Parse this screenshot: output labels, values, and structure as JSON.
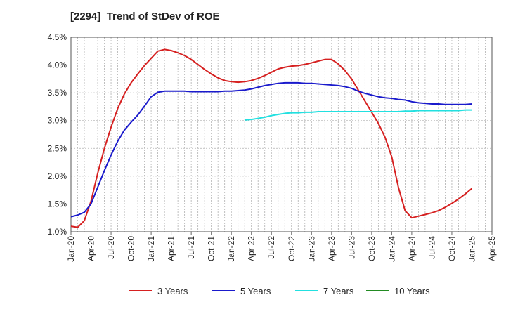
{
  "chart_data": {
    "type": "line",
    "title": "[2294]  Trend of StDev of ROE",
    "xlabel": "",
    "ylabel": "",
    "x_ticks": [
      "Jan-20",
      "Apr-20",
      "Jul-20",
      "Oct-20",
      "Jan-21",
      "Apr-21",
      "Jul-21",
      "Oct-21",
      "Jan-22",
      "Apr-22",
      "Jul-22",
      "Oct-22",
      "Jan-23",
      "Apr-23",
      "Jul-23",
      "Oct-23",
      "Jan-24",
      "Apr-24",
      "Jul-24",
      "Oct-24",
      "Jan-25",
      "Apr-25"
    ],
    "y_ticks": [
      "1.0%",
      "1.5%",
      "2.0%",
      "2.5%",
      "3.0%",
      "3.5%",
      "4.0%",
      "4.5%"
    ],
    "ylim": [
      1.0,
      4.5
    ],
    "grid": true,
    "legend_position": "bottom",
    "series": [
      {
        "name": "3 Years",
        "color": "#d62020",
        "points": [
          [
            "Jan-20",
            1.1
          ],
          [
            "Feb-20",
            1.08
          ],
          [
            "Mar-20",
            1.2
          ],
          [
            "Apr-20",
            1.55
          ],
          [
            "May-20",
            2.05
          ],
          [
            "Jun-20",
            2.5
          ],
          [
            "Jul-20",
            2.88
          ],
          [
            "Aug-20",
            3.22
          ],
          [
            "Sep-20",
            3.48
          ],
          [
            "Oct-20",
            3.68
          ],
          [
            "Nov-20",
            3.84
          ],
          [
            "Dec-20",
            3.99
          ],
          [
            "Jan-21",
            4.12
          ],
          [
            "Feb-21",
            4.25
          ],
          [
            "Mar-21",
            4.28
          ],
          [
            "Apr-21",
            4.26
          ],
          [
            "May-21",
            4.22
          ],
          [
            "Jun-21",
            4.17
          ],
          [
            "Jul-21",
            4.1
          ],
          [
            "Aug-21",
            4.01
          ],
          [
            "Sep-21",
            3.92
          ],
          [
            "Oct-21",
            3.84
          ],
          [
            "Nov-21",
            3.77
          ],
          [
            "Dec-21",
            3.72
          ],
          [
            "Jan-22",
            3.7
          ],
          [
            "Feb-22",
            3.69
          ],
          [
            "Mar-22",
            3.7
          ],
          [
            "Apr-22",
            3.72
          ],
          [
            "May-22",
            3.76
          ],
          [
            "Jun-22",
            3.81
          ],
          [
            "Jul-22",
            3.87
          ],
          [
            "Aug-22",
            3.93
          ],
          [
            "Sep-22",
            3.96
          ],
          [
            "Oct-22",
            3.98
          ],
          [
            "Nov-22",
            3.99
          ],
          [
            "Dec-22",
            4.01
          ],
          [
            "Jan-23",
            4.04
          ],
          [
            "Feb-23",
            4.07
          ],
          [
            "Mar-23",
            4.1
          ],
          [
            "Apr-23",
            4.1
          ],
          [
            "May-23",
            4.02
          ],
          [
            "Jun-23",
            3.9
          ],
          [
            "Jul-23",
            3.75
          ],
          [
            "Aug-23",
            3.55
          ],
          [
            "Sep-23",
            3.35
          ],
          [
            "Oct-23",
            3.15
          ],
          [
            "Nov-23",
            2.95
          ],
          [
            "Dec-23",
            2.7
          ],
          [
            "Jan-24",
            2.35
          ],
          [
            "Feb-24",
            1.8
          ],
          [
            "Mar-24",
            1.38
          ],
          [
            "Apr-24",
            1.25
          ],
          [
            "May-24",
            1.28
          ],
          [
            "Jun-24",
            1.31
          ],
          [
            "Jul-24",
            1.34
          ],
          [
            "Aug-24",
            1.38
          ],
          [
            "Sep-24",
            1.44
          ],
          [
            "Oct-24",
            1.51
          ],
          [
            "Nov-24",
            1.59
          ],
          [
            "Dec-24",
            1.68
          ],
          [
            "Jan-25",
            1.78
          ]
        ]
      },
      {
        "name": "5 Years",
        "color": "#1a1acc",
        "points": [
          [
            "Jan-20",
            1.27
          ],
          [
            "Feb-20",
            1.3
          ],
          [
            "Mar-20",
            1.35
          ],
          [
            "Apr-20",
            1.5
          ],
          [
            "May-20",
            1.8
          ],
          [
            "Jun-20",
            2.1
          ],
          [
            "Jul-20",
            2.38
          ],
          [
            "Aug-20",
            2.63
          ],
          [
            "Sep-20",
            2.83
          ],
          [
            "Oct-20",
            2.97
          ],
          [
            "Nov-20",
            3.1
          ],
          [
            "Dec-20",
            3.26
          ],
          [
            "Jan-21",
            3.43
          ],
          [
            "Feb-21",
            3.51
          ],
          [
            "Mar-21",
            3.53
          ],
          [
            "Apr-21",
            3.53
          ],
          [
            "May-21",
            3.53
          ],
          [
            "Jun-21",
            3.53
          ],
          [
            "Jul-21",
            3.52
          ],
          [
            "Aug-21",
            3.52
          ],
          [
            "Sep-21",
            3.52
          ],
          [
            "Oct-21",
            3.52
          ],
          [
            "Nov-21",
            3.52
          ],
          [
            "Dec-21",
            3.53
          ],
          [
            "Jan-22",
            3.53
          ],
          [
            "Feb-22",
            3.54
          ],
          [
            "Mar-22",
            3.55
          ],
          [
            "Apr-22",
            3.57
          ],
          [
            "May-22",
            3.6
          ],
          [
            "Jun-22",
            3.63
          ],
          [
            "Jul-22",
            3.65
          ],
          [
            "Aug-22",
            3.67
          ],
          [
            "Sep-22",
            3.68
          ],
          [
            "Oct-22",
            3.68
          ],
          [
            "Nov-22",
            3.68
          ],
          [
            "Dec-22",
            3.67
          ],
          [
            "Jan-23",
            3.67
          ],
          [
            "Feb-23",
            3.66
          ],
          [
            "Mar-23",
            3.65
          ],
          [
            "Apr-23",
            3.64
          ],
          [
            "May-23",
            3.63
          ],
          [
            "Jun-23",
            3.61
          ],
          [
            "Jul-23",
            3.58
          ],
          [
            "Aug-23",
            3.53
          ],
          [
            "Sep-23",
            3.49
          ],
          [
            "Oct-23",
            3.46
          ],
          [
            "Nov-23",
            3.43
          ],
          [
            "Dec-23",
            3.41
          ],
          [
            "Jan-24",
            3.4
          ],
          [
            "Feb-24",
            3.38
          ],
          [
            "Mar-24",
            3.37
          ],
          [
            "Apr-24",
            3.34
          ],
          [
            "May-24",
            3.32
          ],
          [
            "Jun-24",
            3.31
          ],
          [
            "Jul-24",
            3.3
          ],
          [
            "Aug-24",
            3.3
          ],
          [
            "Sep-24",
            3.29
          ],
          [
            "Oct-24",
            3.29
          ],
          [
            "Nov-24",
            3.29
          ],
          [
            "Dec-24",
            3.29
          ],
          [
            "Jan-25",
            3.3
          ]
        ]
      },
      {
        "name": "7 Years",
        "color": "#22e0e0",
        "points": [
          [
            "Mar-22",
            3.01
          ],
          [
            "Apr-22",
            3.02
          ],
          [
            "May-22",
            3.04
          ],
          [
            "Jun-22",
            3.06
          ],
          [
            "Jul-22",
            3.09
          ],
          [
            "Aug-22",
            3.11
          ],
          [
            "Sep-22",
            3.13
          ],
          [
            "Oct-22",
            3.14
          ],
          [
            "Nov-22",
            3.14
          ],
          [
            "Dec-22",
            3.15
          ],
          [
            "Jan-23",
            3.15
          ],
          [
            "Feb-23",
            3.16
          ],
          [
            "Mar-23",
            3.16
          ],
          [
            "Apr-23",
            3.16
          ],
          [
            "May-23",
            3.16
          ],
          [
            "Jun-23",
            3.16
          ],
          [
            "Jul-23",
            3.16
          ],
          [
            "Aug-23",
            3.16
          ],
          [
            "Sep-23",
            3.16
          ],
          [
            "Oct-23",
            3.16
          ],
          [
            "Nov-23",
            3.16
          ],
          [
            "Dec-23",
            3.16
          ],
          [
            "Jan-24",
            3.16
          ],
          [
            "Feb-24",
            3.16
          ],
          [
            "Mar-24",
            3.17
          ],
          [
            "Apr-24",
            3.17
          ],
          [
            "May-24",
            3.18
          ],
          [
            "Jun-24",
            3.18
          ],
          [
            "Jul-24",
            3.18
          ],
          [
            "Aug-24",
            3.18
          ],
          [
            "Sep-24",
            3.18
          ],
          [
            "Oct-24",
            3.18
          ],
          [
            "Nov-24",
            3.18
          ],
          [
            "Dec-24",
            3.19
          ],
          [
            "Jan-25",
            3.19
          ]
        ]
      },
      {
        "name": "10 Years",
        "color": "#228b22",
        "points": []
      }
    ]
  }
}
